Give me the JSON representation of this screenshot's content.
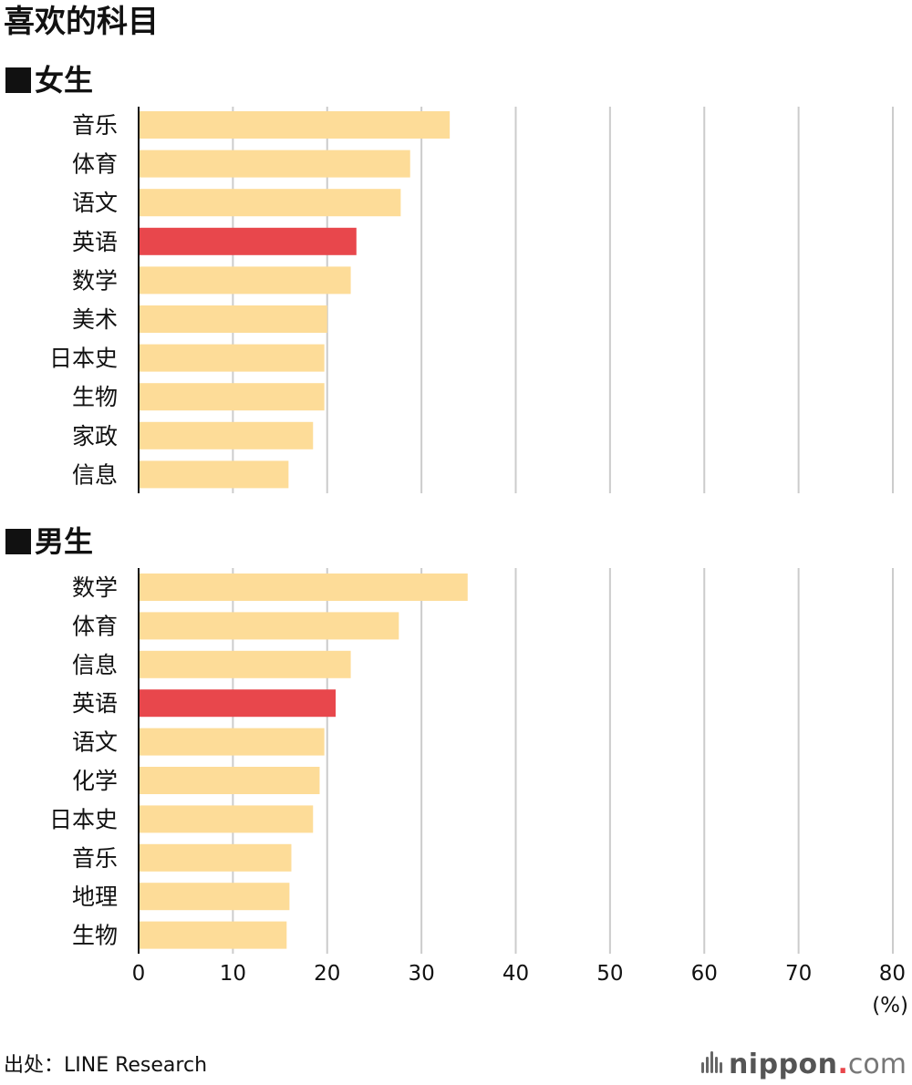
{
  "title": "喜欢的科目",
  "source": "出处：LINE Research",
  "logo": {
    "name": "nippon",
    "dot": ".",
    "tld": "com"
  },
  "colors": {
    "bar": "#fddc98",
    "highlight": "#e8474c",
    "grid": "#cccccc",
    "axis": "#111111"
  },
  "chart_data": [
    {
      "type": "bar",
      "orientation": "horizontal",
      "title": "■女生",
      "categories": [
        "音乐",
        "体育",
        "语文",
        "英语",
        "数学",
        "美术",
        "日本史",
        "生物",
        "家政",
        "信息"
      ],
      "values": [
        33.0,
        28.8,
        27.8,
        23.1,
        22.5,
        20.0,
        19.7,
        19.7,
        18.5,
        15.9
      ],
      "highlight": [
        "英语"
      ],
      "xlim": [
        0,
        80
      ],
      "xticks": [
        0,
        10,
        20,
        30,
        40,
        50,
        60,
        70,
        80
      ],
      "xlabel": "",
      "ylabel": "",
      "grid": "vertical",
      "legend": "none"
    },
    {
      "type": "bar",
      "orientation": "horizontal",
      "title": "■男生",
      "categories": [
        "数学",
        "体育",
        "信息",
        "英语",
        "语文",
        "化学",
        "日本史",
        "音乐",
        "地理",
        "生物"
      ],
      "values": [
        34.9,
        27.6,
        22.5,
        20.9,
        19.7,
        19.2,
        18.5,
        16.2,
        16.0,
        15.7
      ],
      "highlight": [
        "英语"
      ],
      "xlim": [
        0,
        80
      ],
      "xticks": [
        0,
        10,
        20,
        30,
        40,
        50,
        60,
        70,
        80
      ],
      "xlabel": "",
      "ylabel": "",
      "unit": "(%)",
      "grid": "vertical",
      "legend": "none"
    }
  ]
}
